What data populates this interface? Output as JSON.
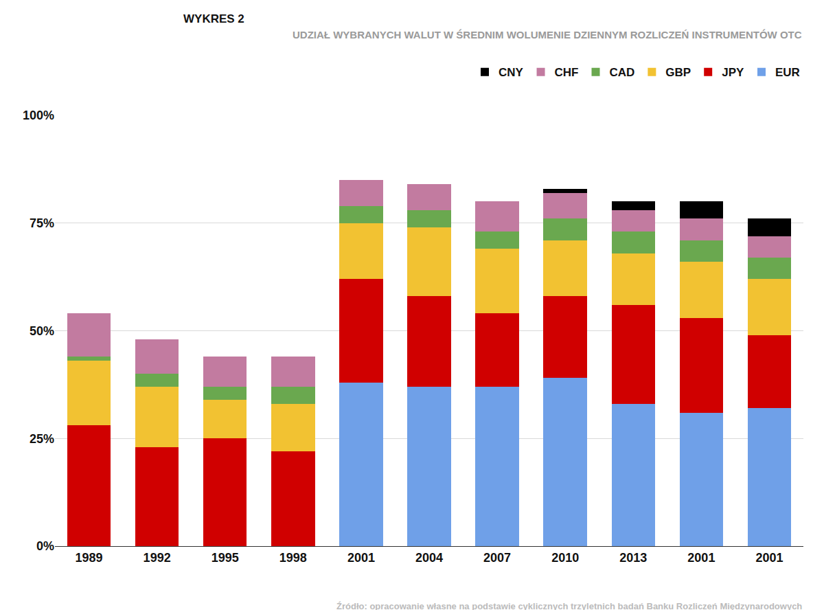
{
  "chart_data": {
    "type": "bar",
    "title": "WYKRES 2",
    "subtitle": "UDZIAŁ WYBRANYCH WALUT W ŚREDNIM WOLUMENIE DZIENNYM ROZLICZEŃ INSTRUMENTÓW OTC",
    "annotations": [
      "Źródło: opracowanie własne na podstawie cyklicznych trzyletnich badań Banku Rozliczeń Międzynarodowych"
    ],
    "categories": [
      "1989",
      "1992",
      "1995",
      "1998",
      "2001",
      "2004",
      "2007",
      "2010",
      "2013",
      "2001",
      "2001"
    ],
    "stacked": true,
    "grid": true,
    "legend": "top right",
    "ylim": [
      0,
      100
    ],
    "yticks": [
      {
        "value": 0,
        "label": "0%"
      },
      {
        "value": 25,
        "label": "25%"
      },
      {
        "value": 50,
        "label": "50%"
      },
      {
        "value": 75,
        "label": "75%"
      },
      {
        "value": 100,
        "label": "100%"
      }
    ],
    "series": [
      {
        "name": "EUR",
        "color": "#6fa0e8",
        "values": [
          null,
          null,
          null,
          null,
          38,
          37,
          37,
          39,
          33,
          31,
          32
        ]
      },
      {
        "name": "JPY",
        "color": "#d00000",
        "values": [
          28,
          23,
          25,
          22,
          24,
          21,
          17,
          19,
          23,
          22,
          17
        ]
      },
      {
        "name": "GBP",
        "color": "#f2c232",
        "values": [
          15,
          14,
          9,
          11,
          13,
          16,
          15,
          13,
          12,
          13,
          13
        ]
      },
      {
        "name": "CAD",
        "color": "#6aa84f",
        "values": [
          1,
          3,
          3,
          4,
          4,
          4,
          4,
          5,
          5,
          5,
          5
        ]
      },
      {
        "name": "CHF",
        "color": "#c27ba0",
        "values": [
          10,
          8,
          7,
          7,
          6,
          6,
          7,
          6,
          5,
          5,
          5
        ]
      },
      {
        "name": "CNY",
        "color": "#000000",
        "values": [
          null,
          null,
          null,
          null,
          null,
          null,
          null,
          1,
          2,
          4,
          4
        ]
      }
    ]
  }
}
